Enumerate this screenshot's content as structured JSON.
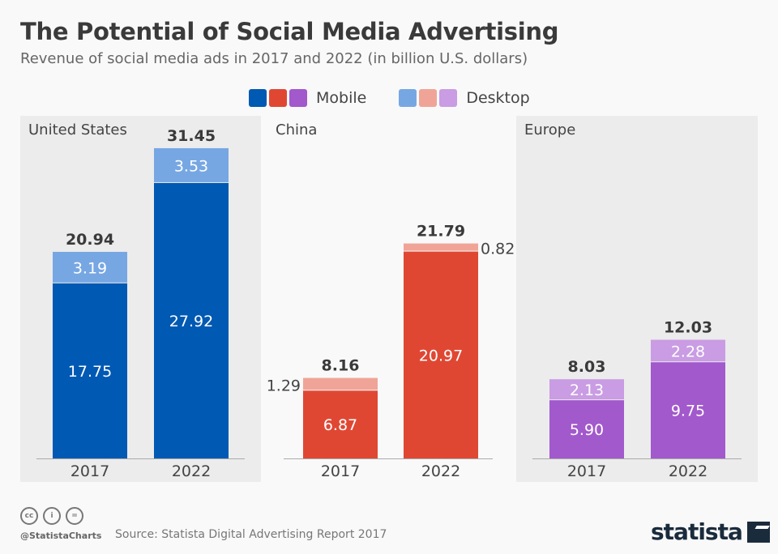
{
  "title": "The Potential of Social Media Advertising",
  "subtitle": "Revenue of social media ads in 2017 and 2022 (in billion U.S. dollars)",
  "legend": {
    "mobile": "Mobile",
    "desktop": "Desktop"
  },
  "colors": {
    "us": {
      "mobile": "#0059b3",
      "desktop": "#77a7e3"
    },
    "china": {
      "mobile": "#e04733",
      "desktop": "#f0a497"
    },
    "europe": {
      "mobile": "#a259cc",
      "desktop": "#c99ce3"
    },
    "panel_bg": "#ececec"
  },
  "chart_data": [
    {
      "type": "bar",
      "stacked": true,
      "title": "United States",
      "categories": [
        "2017",
        "2022"
      ],
      "series": [
        {
          "name": "Mobile",
          "values": [
            17.75,
            27.92
          ]
        },
        {
          "name": "Desktop",
          "values": [
            3.19,
            3.53
          ]
        }
      ],
      "totals": [
        "20.94",
        "31.45"
      ],
      "labels": {
        "mobile": [
          "17.75",
          "27.92"
        ],
        "desktop": [
          "3.19",
          "3.53"
        ]
      }
    },
    {
      "type": "bar",
      "stacked": true,
      "title": "China",
      "categories": [
        "2017",
        "2022"
      ],
      "series": [
        {
          "name": "Mobile",
          "values": [
            6.87,
            20.97
          ]
        },
        {
          "name": "Desktop",
          "values": [
            1.29,
            0.82
          ]
        }
      ],
      "totals": [
        "8.16",
        "21.79"
      ],
      "labels": {
        "mobile": [
          "6.87",
          "20.97"
        ],
        "desktop": [
          "1.29",
          "0.82"
        ]
      }
    },
    {
      "type": "bar",
      "stacked": true,
      "title": "Europe",
      "categories": [
        "2017",
        "2022"
      ],
      "series": [
        {
          "name": "Mobile",
          "values": [
            5.9,
            9.75
          ]
        },
        {
          "name": "Desktop",
          "values": [
            2.13,
            2.28
          ]
        }
      ],
      "totals": [
        "8.03",
        "12.03"
      ],
      "labels": {
        "mobile": [
          "5.90",
          "9.75"
        ],
        "desktop": [
          "2.13",
          "2.28"
        ]
      }
    }
  ],
  "footer": {
    "handle": "@StatistaCharts",
    "source": "Source: Statista Digital Advertising Report 2017",
    "logo": "statista",
    "cc_icons": [
      "cc",
      "by",
      "nd"
    ]
  }
}
